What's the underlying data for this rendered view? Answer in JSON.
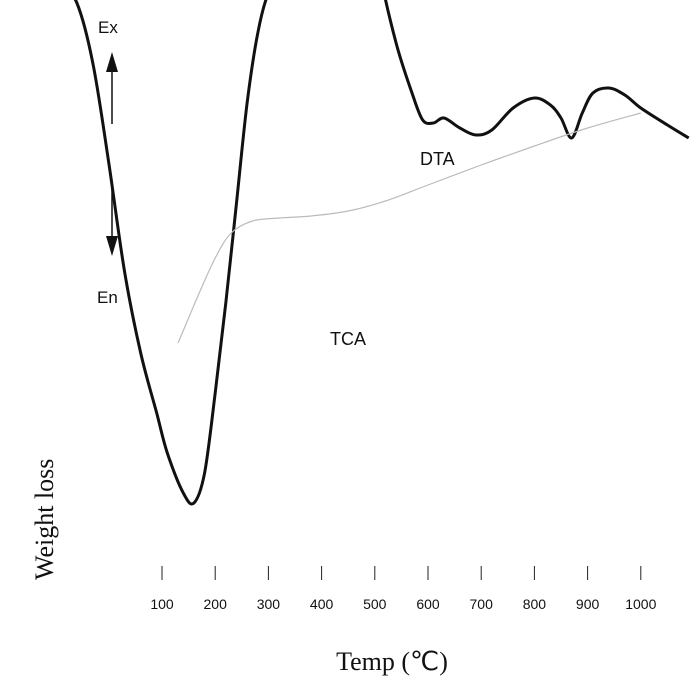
{
  "chart_data": {
    "type": "line",
    "title": "",
    "xlabel": "Temp (℃)",
    "ylabel": "Weight  loss",
    "x_ticks": [
      100,
      200,
      300,
      400,
      500,
      600,
      700,
      800,
      900,
      1000
    ],
    "x_tick_labels": [
      "100",
      "200",
      "300",
      "400",
      "500",
      "600",
      "700",
      "800",
      "900",
      "1000"
    ],
    "xlim": [
      -90,
      1090
    ],
    "direction_labels": {
      "up": "Ex",
      "down": "En"
    },
    "series": [
      {
        "name": "DTA",
        "color": "#111111",
        "points": [
          [
            -90,
            258
          ],
          [
            -60,
            240
          ],
          [
            -30,
            180
          ],
          [
            0,
            80
          ],
          [
            30,
            -30
          ],
          [
            60,
            -110
          ],
          [
            90,
            -170
          ],
          [
            110,
            -210
          ],
          [
            140,
            -250
          ],
          [
            160,
            -260
          ],
          [
            180,
            -230
          ],
          [
            200,
            -150
          ],
          [
            220,
            -60
          ],
          [
            240,
            40
          ],
          [
            260,
            140
          ],
          [
            280,
            210
          ],
          [
            300,
            250
          ],
          [
            330,
            275
          ],
          [
            370,
            282
          ],
          [
            410,
            277
          ],
          [
            440,
            280
          ],
          [
            470,
            290
          ],
          [
            490,
            305
          ],
          [
            500,
            320
          ],
          [
            510,
            270
          ],
          [
            540,
            200
          ],
          [
            570,
            150
          ],
          [
            590,
            123
          ],
          [
            610,
            120
          ],
          [
            630,
            125
          ],
          [
            660,
            115
          ],
          [
            690,
            108
          ],
          [
            720,
            113
          ],
          [
            760,
            135
          ],
          [
            800,
            145
          ],
          [
            830,
            138
          ],
          [
            850,
            125
          ],
          [
            870,
            105
          ],
          [
            890,
            130
          ],
          [
            910,
            150
          ],
          [
            940,
            155
          ],
          [
            970,
            148
          ],
          [
            1000,
            135
          ],
          [
            1050,
            118
          ],
          [
            1090,
            105
          ]
        ]
      },
      {
        "name": "TCA",
        "color": "#bbbbbb",
        "points": [
          [
            130,
            -100
          ],
          [
            150,
            -75
          ],
          [
            170,
            -50
          ],
          [
            200,
            -15
          ],
          [
            230,
            10
          ],
          [
            270,
            22
          ],
          [
            320,
            25
          ],
          [
            380,
            27
          ],
          [
            450,
            32
          ],
          [
            520,
            42
          ],
          [
            600,
            58
          ],
          [
            700,
            78
          ],
          [
            800,
            97
          ],
          [
            900,
            115
          ],
          [
            1000,
            130
          ]
        ]
      }
    ]
  }
}
